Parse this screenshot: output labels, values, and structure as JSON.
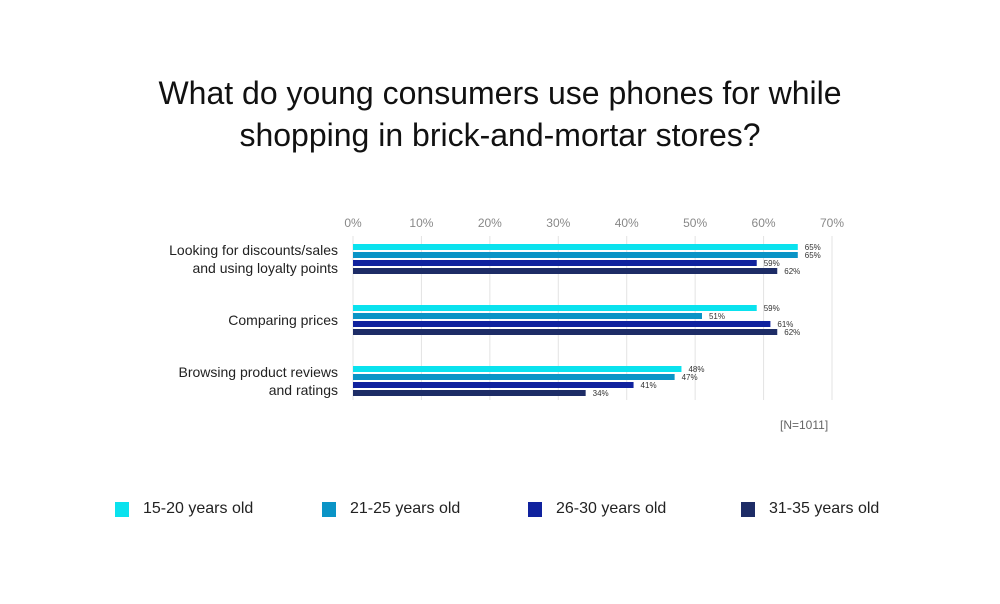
{
  "chart_data": {
    "type": "bar",
    "orientation": "horizontal",
    "title_lines": [
      "What do young consumers use phones for while",
      "shopping in brick-and-mortar stores?"
    ],
    "categories": [
      [
        "Looking for discounts/sales",
        "and using loyalty points"
      ],
      [
        "Comparing prices"
      ],
      [
        "Browsing product reviews",
        "and ratings"
      ]
    ],
    "series": [
      {
        "name": "15-20 years old",
        "color": "#0ae2ee",
        "values": [
          65,
          59,
          48
        ]
      },
      {
        "name": "21-25 years old",
        "color": "#0a94c6",
        "values": [
          65,
          51,
          47
        ]
      },
      {
        "name": "26-30 years old",
        "color": "#10229e",
        "values": [
          59,
          61,
          41
        ]
      },
      {
        "name": "31-35 years old",
        "color": "#1d2c66",
        "values": [
          62,
          62,
          34
        ]
      }
    ],
    "xticks": [
      "0%",
      "10%",
      "20%",
      "30%",
      "40%",
      "50%",
      "60%",
      "70%"
    ],
    "xlim": [
      0,
      70
    ],
    "grid": true,
    "legend_position": "bottom",
    "note": "[N=1011]"
  }
}
